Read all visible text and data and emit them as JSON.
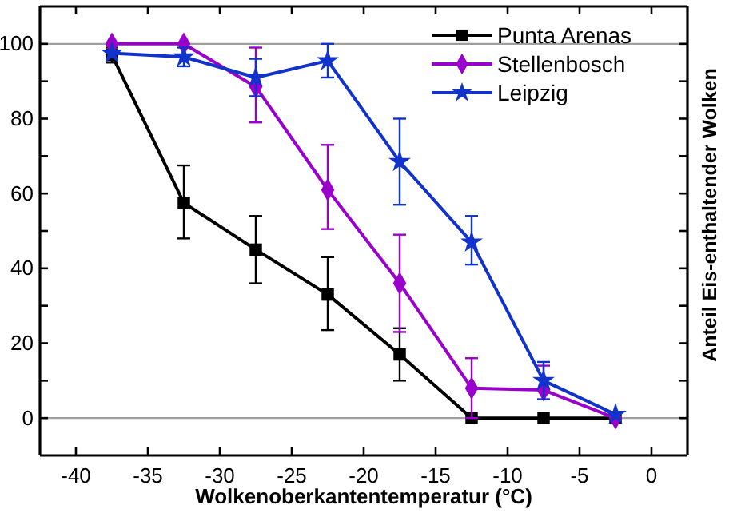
{
  "chart_data": {
    "type": "line",
    "xlabel": "Wolkenoberkantentemperatur (°C)",
    "ylabel": "Anteil Eis-enthaltender Wolken",
    "x": [
      -37.5,
      -32.5,
      -27.5,
      -22.5,
      -17.5,
      -12.5,
      -7.5,
      -2.5
    ],
    "xlim": [
      -42.5,
      2.5
    ],
    "xticks": [
      -40,
      -35,
      -30,
      -25,
      -20,
      -15,
      -10,
      -5,
      0
    ],
    "ylim": [
      -10,
      110
    ],
    "yticks": [
      0,
      {
        "value": 10,
        "label": null
      },
      20,
      {
        "value": 30,
        "label": null
      },
      40,
      {
        "value": 50,
        "label": null
      },
      60,
      {
        "value": 70,
        "label": null
      },
      80,
      {
        "value": 90,
        "label": null
      },
      100
    ],
    "legend": "top right",
    "line_style": "solid",
    "ref_lines": [
      {
        "axis": "y",
        "value": 0,
        "color": "#a0a0a0"
      },
      {
        "axis": "y",
        "value": 100,
        "color": "#a0a0a0"
      }
    ],
    "series": [
      {
        "name": "Punta Arenas",
        "color": "#000000",
        "marker": "square",
        "values": [
          97,
          57.5,
          45,
          33,
          17,
          0,
          0,
          0
        ],
        "errors": [
          [
            95,
            99
          ],
          [
            48,
            67.5
          ],
          [
            36,
            54
          ],
          [
            23.5,
            43
          ],
          [
            10,
            24
          ],
          null,
          null,
          null
        ]
      },
      {
        "name": "Stellenbosch",
        "color": "#9900cc",
        "marker": "diamond",
        "values": [
          100,
          100,
          88.5,
          61,
          36,
          8,
          7.5,
          0
        ],
        "errors": [
          null,
          null,
          [
            79,
            99
          ],
          [
            50.5,
            73
          ],
          [
            23,
            49
          ],
          [
            0,
            16
          ],
          [
            5,
            14
          ],
          null
        ]
      },
      {
        "name": "Leipzig",
        "color": "#1133cc",
        "marker": "star",
        "values": [
          97.5,
          96.5,
          91,
          95.5,
          68.5,
          47,
          10,
          1
        ],
        "errors": [
          null,
          [
            94,
            99
          ],
          [
            86,
            96
          ],
          [
            91,
            100
          ],
          [
            57,
            80
          ],
          [
            41,
            54
          ],
          [
            5,
            15
          ],
          null
        ]
      }
    ]
  }
}
